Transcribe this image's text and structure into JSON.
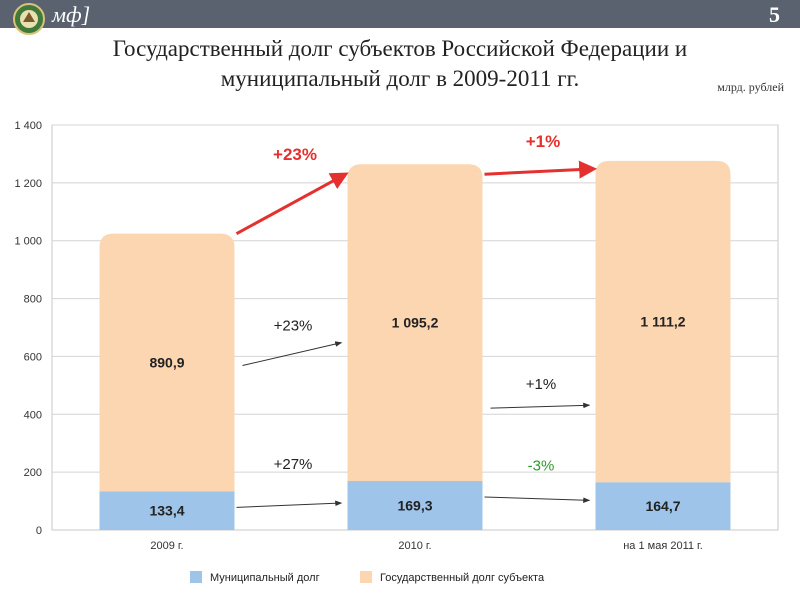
{
  "header": {
    "logo_text": "мф]",
    "page_number": "5",
    "bar_color": "#5a6270"
  },
  "title": "Государственный долг субъектов Российской Федерации и муниципальный долг в 2009-2011 гг.",
  "units": "млрд. рублей",
  "chart_data": {
    "type": "bar",
    "stacked": true,
    "categories": [
      "2009 г.",
      "2010 г.",
      "на 1 мая 2011 г."
    ],
    "series": [
      {
        "name": "Муниципальный долг",
        "values": [
          133.4,
          169.3,
          164.7
        ],
        "labels": [
          "133,4",
          "169,3",
          "164,7"
        ],
        "color": "#9fc4ea"
      },
      {
        "name": "Государственный долг субъекта",
        "values": [
          890.9,
          1095.2,
          1111.2
        ],
        "labels": [
          "890,9",
          "1 095,2",
          "1 111,2"
        ],
        "color": "#fbd6b0"
      }
    ],
    "yticks": [
      {
        "value": 0,
        "label": "0"
      },
      {
        "value": 200,
        "label": "200"
      },
      {
        "value": 400,
        "label": "400"
      },
      {
        "value": 600,
        "label": "600"
      },
      {
        "value": 800,
        "label": "800"
      },
      {
        "value": 1000,
        "label": "1 000"
      },
      {
        "value": 1200,
        "label": "1 200"
      },
      {
        "value": 1400,
        "label": "1 400"
      }
    ],
    "ylim": [
      0,
      1400
    ],
    "grid": true,
    "legend_position": "bottom",
    "annotations": {
      "total_growth": [
        "+23%",
        "+1%"
      ],
      "total_growth_color": "#e53030",
      "state_growth": [
        "+23%",
        "+1%"
      ],
      "municipal_growth": [
        "+27%",
        "-3%"
      ],
      "municipal_growth_colors": [
        "#222222",
        "#2a9a2a"
      ]
    }
  }
}
